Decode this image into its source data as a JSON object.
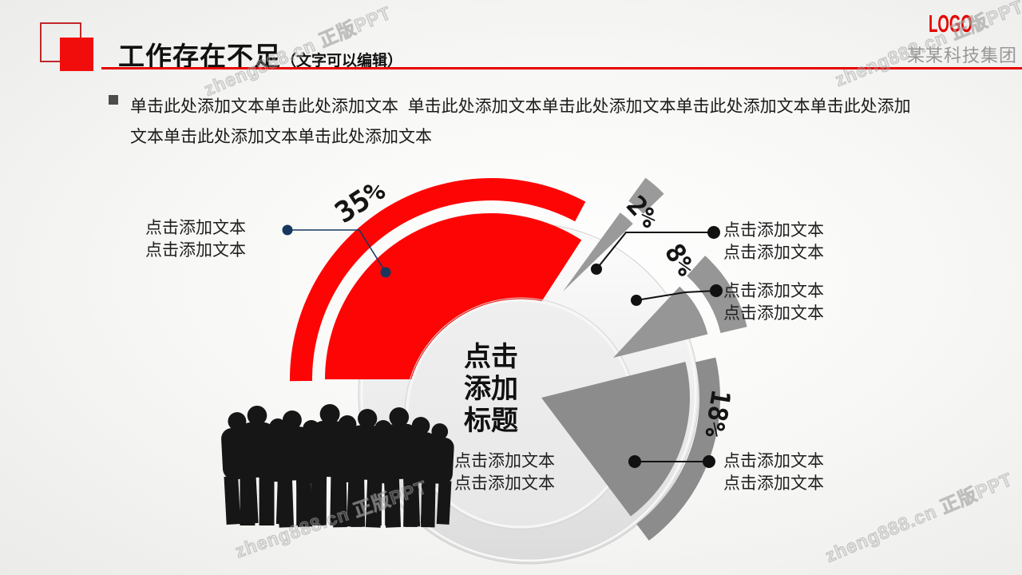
{
  "header": {
    "title": "工作存在不足",
    "title_suffix": "（文字可以编辑）",
    "logo": "LOGO",
    "company": "某某科技集团"
  },
  "body_text": "单击此处添加文本单击此处添加文本  单击此处添加文本单击此处添加文本单击此处添加文本单击此处添加文本单击此处添加文本单击此处添加文本",
  "watermark": "zheng888.cn 正版PPT",
  "center": {
    "title_lines": [
      "点击",
      "添加",
      "标题"
    ],
    "note_lines": [
      "点击添加文本",
      "点击添加文本"
    ]
  },
  "colors": {
    "accent_red": "#fe0505",
    "title_square_red": "#f20d0d",
    "header_line_red": "#e60000",
    "gray_slice": "#8f8f8f",
    "connector_navy": "#17375d",
    "connector_black": "#111111"
  },
  "chart_data": {
    "type": "pie",
    "title": "点击添加标题",
    "unit": "%",
    "legend_position": "callouts",
    "grid": false,
    "slices": [
      {
        "label": "35%",
        "value": 35,
        "color": "#fe0505",
        "note_lines": [
          "点击添加文本",
          "点击添加文本"
        ],
        "callout_side": "left"
      },
      {
        "label": "2%",
        "value": 2,
        "color": "#9a9a9a",
        "note_lines": [
          "点击添加文本",
          "点击添加文本"
        ],
        "callout_side": "right"
      },
      {
        "label": "8%",
        "value": 8,
        "color": "#969696",
        "note_lines": [
          "点击添加文本",
          "点击添加文本"
        ],
        "callout_side": "right"
      },
      {
        "label": "18%",
        "value": 18,
        "color": "#8c8c8c",
        "note_lines": [
          "点击添加文本",
          "点击添加文本"
        ],
        "callout_side": "right"
      }
    ],
    "center_note_lines": [
      "点击添加文本",
      "点击添加文本"
    ]
  }
}
